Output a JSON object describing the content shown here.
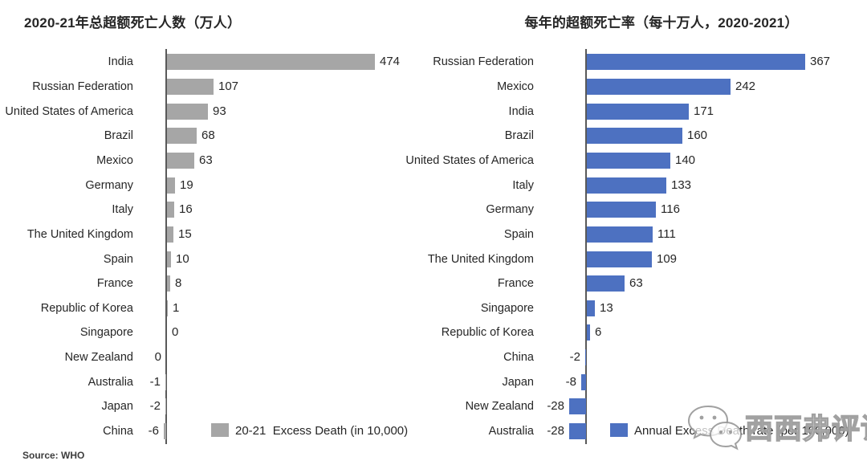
{
  "page": {
    "source_note": "Source: WHO",
    "watermark": {
      "icon": "wechat-icon",
      "text": "西西弗评论"
    }
  },
  "chart_data": [
    {
      "type": "bar",
      "orientation": "horizontal",
      "title": "2020-21年总超额死亡人数（万人）",
      "legend": "20-21  Excess Death (in 10,000)",
      "bar_color": "#a6a6a6",
      "value_axis_implied_range": [
        -30,
        500
      ],
      "grid": false,
      "legend_position": "bottom-inside",
      "items": [
        {
          "name": "India",
          "value": 474,
          "side": "right"
        },
        {
          "name": "Russian Federation",
          "value": 107,
          "side": "right"
        },
        {
          "name": "United States of America",
          "value": 93,
          "side": "right"
        },
        {
          "name": "Brazil",
          "value": 68,
          "side": "right"
        },
        {
          "name": "Mexico",
          "value": 63,
          "side": "right"
        },
        {
          "name": "Germany",
          "value": 19,
          "side": "right"
        },
        {
          "name": "Italy",
          "value": 16,
          "side": "right"
        },
        {
          "name": "The United Kingdom",
          "value": 15,
          "side": "right"
        },
        {
          "name": "Spain",
          "value": 10,
          "side": "right"
        },
        {
          "name": "France",
          "value": 8,
          "side": "right"
        },
        {
          "name": "Republic of Korea",
          "value": 1,
          "side": "right"
        },
        {
          "name": "Singapore",
          "value": 0,
          "side": "right"
        },
        {
          "name": "New Zealand",
          "value": 0,
          "side": "left"
        },
        {
          "name": "Australia",
          "value": -1,
          "side": "left"
        },
        {
          "name": "Japan",
          "value": -2,
          "side": "left"
        },
        {
          "name": "China",
          "value": -6,
          "side": "left"
        }
      ]
    },
    {
      "type": "bar",
      "orientation": "horizontal",
      "title": "每年的超额死亡率（每十万人，2020-2021）",
      "legend": "Annual Excess Death rate (per 100,000)",
      "bar_color": "#4d71c1",
      "value_axis_implied_range": [
        -40,
        400
      ],
      "grid": false,
      "legend_position": "bottom-inside",
      "items": [
        {
          "name": "Russian Federation",
          "value": 367,
          "side": "right"
        },
        {
          "name": "Mexico",
          "value": 242,
          "side": "right"
        },
        {
          "name": "India",
          "value": 171,
          "side": "right"
        },
        {
          "name": "Brazil",
          "value": 160,
          "side": "right"
        },
        {
          "name": "United States of America",
          "value": 140,
          "side": "right"
        },
        {
          "name": "Italy",
          "value": 133,
          "side": "right"
        },
        {
          "name": "Germany",
          "value": 116,
          "side": "right"
        },
        {
          "name": "Spain",
          "value": 111,
          "side": "right"
        },
        {
          "name": "The United Kingdom",
          "value": 109,
          "side": "right"
        },
        {
          "name": "France",
          "value": 63,
          "side": "right"
        },
        {
          "name": "Singapore",
          "value": 13,
          "side": "right"
        },
        {
          "name": "Republic of Korea",
          "value": 6,
          "side": "right"
        },
        {
          "name": "China",
          "value": -2,
          "side": "left"
        },
        {
          "name": "Japan",
          "value": -8,
          "side": "left"
        },
        {
          "name": "New Zealand",
          "value": -28,
          "side": "left"
        },
        {
          "name": "Australia",
          "value": -28,
          "side": "left"
        }
      ]
    }
  ]
}
